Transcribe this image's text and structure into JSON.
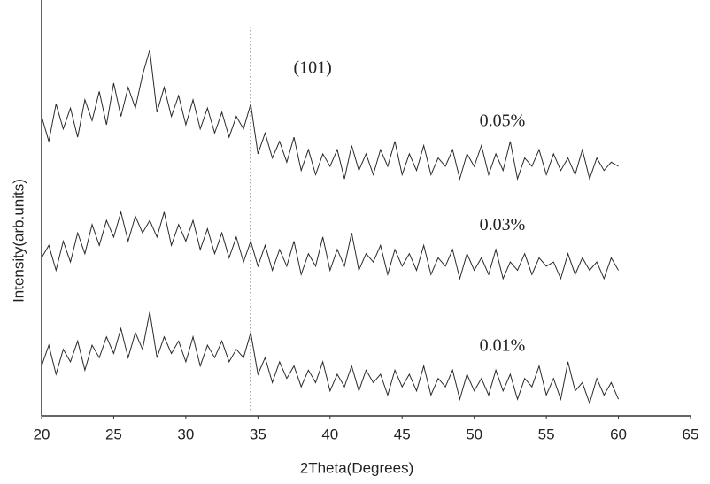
{
  "chart_data": {
    "type": "line",
    "xlabel": "2Theta(Degrees)",
    "ylabel": "Intensity(arb.units)",
    "x": [
      20,
      20.5,
      21,
      21.5,
      22,
      22.5,
      23,
      23.5,
      24,
      24.5,
      25,
      25.5,
      26,
      26.5,
      27,
      27.5,
      28,
      28.5,
      29,
      29.5,
      30,
      30.5,
      31,
      31.5,
      32,
      32.5,
      33,
      33.5,
      34,
      34.5,
      35,
      35.5,
      36,
      36.5,
      37,
      37.5,
      38,
      38.5,
      39,
      39.5,
      40,
      40.5,
      41,
      41.5,
      42,
      42.5,
      43,
      43.5,
      44,
      44.5,
      45,
      45.5,
      46,
      46.5,
      47,
      47.5,
      48,
      48.5,
      49,
      49.5,
      50,
      50.5,
      51,
      51.5,
      52,
      52.5,
      53,
      53.5,
      54,
      54.5,
      55,
      55.5,
      56,
      56.5,
      57,
      57.5,
      58,
      58.5,
      59,
      59.5,
      60
    ],
    "series": [
      {
        "name": "0.05%",
        "color": "#2a2a2a",
        "values": [
          72,
          66,
          75,
          69,
          74,
          67,
          76,
          71,
          78,
          70,
          80,
          72,
          79,
          74,
          82,
          88,
          73,
          79,
          72,
          77,
          70,
          76,
          69,
          74,
          68,
          73,
          67,
          72,
          69,
          75,
          63,
          68,
          62,
          66,
          61,
          67,
          59,
          64,
          58,
          63,
          60,
          64,
          57,
          65,
          59,
          63,
          58,
          64,
          60,
          66,
          58,
          63,
          59,
          65,
          58,
          62,
          60,
          64,
          57,
          63,
          60,
          65,
          58,
          63,
          59,
          66,
          57,
          62,
          60,
          64,
          58,
          63,
          59,
          62,
          58,
          64,
          57,
          62,
          59,
          61,
          60
        ]
      },
      {
        "name": "0.03%",
        "color": "#2a2a2a",
        "values": [
          38,
          41,
          35,
          42,
          37,
          44,
          39,
          46,
          41,
          47,
          43,
          49,
          42,
          48,
          44,
          47,
          43,
          49,
          41,
          46,
          42,
          47,
          40,
          45,
          39,
          44,
          38,
          43,
          37,
          42,
          36,
          41,
          35,
          40,
          36,
          42,
          34,
          39,
          36,
          43,
          35,
          40,
          36,
          44,
          35,
          39,
          37,
          41,
          34,
          40,
          36,
          39,
          35,
          41,
          34,
          38,
          36,
          40,
          33,
          39,
          35,
          38,
          34,
          40,
          33,
          37,
          35,
          39,
          34,
          38,
          36,
          37,
          33,
          39,
          34,
          38,
          35,
          37,
          33,
          38,
          35
        ]
      },
      {
        "name": "0.01%",
        "color": "#2a2a2a",
        "values": [
          12,
          17,
          10,
          16,
          13,
          18,
          11,
          17,
          14,
          19,
          15,
          21,
          14,
          20,
          16,
          25,
          14,
          19,
          15,
          18,
          13,
          19,
          12,
          17,
          14,
          18,
          13,
          16,
          14,
          20,
          10,
          14,
          8,
          13,
          9,
          12,
          7,
          11,
          8,
          13,
          6,
          10,
          7,
          12,
          6,
          11,
          8,
          10,
          5,
          11,
          7,
          10,
          6,
          12,
          5,
          9,
          7,
          11,
          4,
          10,
          6,
          9,
          5,
          11,
          6,
          10,
          4,
          9,
          7,
          12,
          5,
          9,
          4,
          13,
          6,
          8,
          3,
          9,
          5,
          8,
          4
        ]
      }
    ],
    "annotation": {
      "text": "(101)",
      "x": 34.5
    },
    "xlim": [
      20,
      65
    ],
    "xticks": [
      20,
      25,
      30,
      35,
      40,
      45,
      50,
      55,
      60,
      65
    ],
    "ylim": [
      0,
      100
    ]
  }
}
